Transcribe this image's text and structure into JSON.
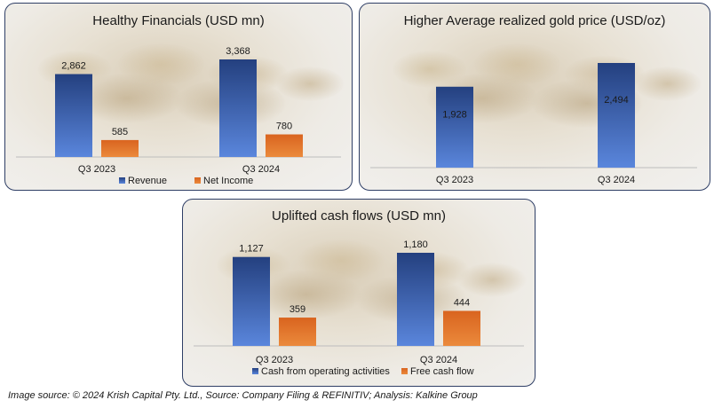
{
  "chart_data": [
    {
      "type": "bar",
      "title": "Healthy Financials (USD mn)",
      "categories": [
        "Q3 2023",
        "Q3 2024"
      ],
      "series": [
        {
          "name": "Revenue",
          "values": [
            2862,
            3368
          ],
          "labels": [
            "2,862",
            "3,368"
          ],
          "color": "#2e50a6"
        },
        {
          "name": "Net Income",
          "values": [
            585,
            780
          ],
          "labels": [
            "585",
            "780"
          ],
          "color": "#e2742a"
        }
      ],
      "ylim": [
        0,
        3368
      ],
      "legend": "bottom"
    },
    {
      "type": "bar",
      "title": "Higher Average realized gold price (USD/oz)",
      "categories": [
        "Q3 2023",
        "Q3 2024"
      ],
      "series": [
        {
          "name": "Average realized gold price",
          "values": [
            1928,
            2494
          ],
          "labels": [
            "1,928",
            "2,494"
          ],
          "color": "#2e50a6"
        }
      ],
      "ylim": [
        0,
        2494
      ],
      "legend": "none"
    },
    {
      "type": "bar",
      "title": "Uplifted cash flows (USD mn)",
      "categories": [
        "Q3 2023",
        "Q3 2024"
      ],
      "series": [
        {
          "name": "Cash from operating activities",
          "values": [
            1127,
            1180
          ],
          "labels": [
            "1,127",
            "1,180"
          ],
          "color": "#2e50a6"
        },
        {
          "name": "Free cash flow",
          "values": [
            359,
            444
          ],
          "labels": [
            "359",
            "444"
          ],
          "color": "#e2742a"
        }
      ],
      "ylim": [
        0,
        1180
      ],
      "legend": "bottom"
    }
  ],
  "caption": "Image source: © 2024 Krish Capital Pty. Ltd., Source: Company Filing & REFINITIV; Analysis: Kalkine Group"
}
